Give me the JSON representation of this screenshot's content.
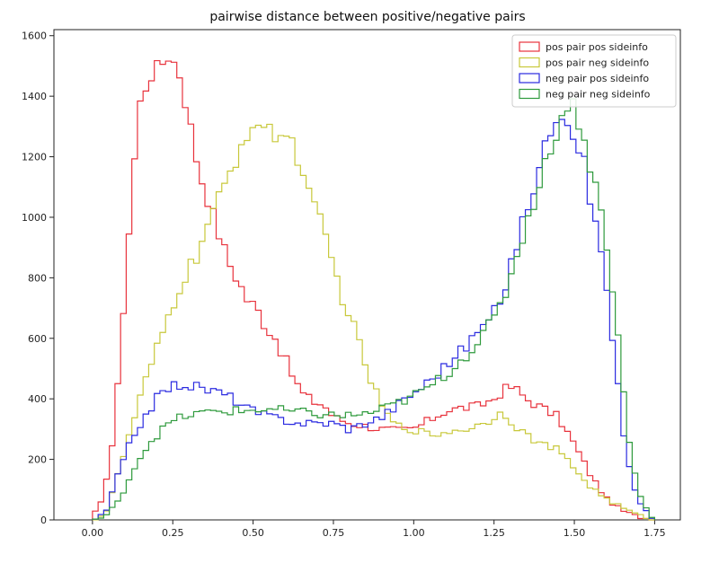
{
  "chart_data": {
    "type": "histogram",
    "title": "pairwise distance between positive/negative pairs",
    "xlabel": "",
    "ylabel": "",
    "xlim": [
      -0.12,
      1.83
    ],
    "ylim": [
      0,
      1620
    ],
    "grid": false,
    "legend_position": "top-right",
    "bin_width": 0.0175,
    "x_start": 0.0,
    "x_ticks": [
      0.0,
      0.25,
      0.5,
      0.75,
      1.0,
      1.25,
      1.5,
      1.75
    ],
    "x_tick_labels": [
      "0.00",
      "0.25",
      "0.50",
      "0.75",
      "1.00",
      "1.25",
      "1.50",
      "1.75"
    ],
    "y_ticks": [
      0,
      200,
      400,
      600,
      800,
      1000,
      1200,
      1400,
      1600
    ],
    "y_tick_labels": [
      "0",
      "200",
      "400",
      "600",
      "800",
      "1000",
      "1200",
      "1400",
      "1600"
    ],
    "series": [
      {
        "name": "pos pair pos sideinfo",
        "color": "#e8323c",
        "anchors": [
          [
            0.0,
            10
          ],
          [
            0.03,
            60
          ],
          [
            0.07,
            300
          ],
          [
            0.09,
            610
          ],
          [
            0.11,
            900
          ],
          [
            0.13,
            1180
          ],
          [
            0.15,
            1390
          ],
          [
            0.18,
            1470
          ],
          [
            0.21,
            1500
          ],
          [
            0.24,
            1540
          ],
          [
            0.27,
            1480
          ],
          [
            0.3,
            1330
          ],
          [
            0.33,
            1160
          ],
          [
            0.36,
            1060
          ],
          [
            0.39,
            960
          ],
          [
            0.42,
            860
          ],
          [
            0.45,
            800
          ],
          [
            0.48,
            730
          ],
          [
            0.51,
            700
          ],
          [
            0.54,
            640
          ],
          [
            0.57,
            600
          ],
          [
            0.6,
            530
          ],
          [
            0.63,
            460
          ],
          [
            0.66,
            410
          ],
          [
            0.69,
            390
          ],
          [
            0.72,
            380
          ],
          [
            0.75,
            340
          ],
          [
            0.8,
            320
          ],
          [
            0.85,
            310
          ],
          [
            0.9,
            300
          ],
          [
            0.95,
            295
          ],
          [
            1.0,
            300
          ],
          [
            1.05,
            330
          ],
          [
            1.1,
            360
          ],
          [
            1.15,
            370
          ],
          [
            1.2,
            375
          ],
          [
            1.25,
            400
          ],
          [
            1.28,
            430
          ],
          [
            1.31,
            440
          ],
          [
            1.35,
            400
          ],
          [
            1.4,
            370
          ],
          [
            1.45,
            340
          ],
          [
            1.5,
            250
          ],
          [
            1.55,
            150
          ],
          [
            1.6,
            70
          ],
          [
            1.65,
            30
          ],
          [
            1.7,
            10
          ],
          [
            1.75,
            0
          ]
        ]
      },
      {
        "name": "pos pair neg sideinfo",
        "color": "#c8c83a",
        "anchors": [
          [
            0.0,
            0
          ],
          [
            0.04,
            20
          ],
          [
            0.08,
            150
          ],
          [
            0.12,
            300
          ],
          [
            0.16,
            440
          ],
          [
            0.2,
            560
          ],
          [
            0.24,
            680
          ],
          [
            0.28,
            790
          ],
          [
            0.32,
            860
          ],
          [
            0.35,
            950
          ],
          [
            0.38,
            1020
          ],
          [
            0.41,
            1100
          ],
          [
            0.44,
            1170
          ],
          [
            0.47,
            1260
          ],
          [
            0.5,
            1310
          ],
          [
            0.53,
            1300
          ],
          [
            0.56,
            1270
          ],
          [
            0.59,
            1280
          ],
          [
            0.62,
            1250
          ],
          [
            0.65,
            1170
          ],
          [
            0.68,
            1050
          ],
          [
            0.71,
            980
          ],
          [
            0.74,
            880
          ],
          [
            0.77,
            760
          ],
          [
            0.8,
            680
          ],
          [
            0.83,
            580
          ],
          [
            0.86,
            480
          ],
          [
            0.89,
            400
          ],
          [
            0.92,
            340
          ],
          [
            0.95,
            310
          ],
          [
            1.0,
            300
          ],
          [
            1.05,
            280
          ],
          [
            1.1,
            290
          ],
          [
            1.15,
            300
          ],
          [
            1.2,
            310
          ],
          [
            1.25,
            340
          ],
          [
            1.28,
            360
          ],
          [
            1.3,
            330
          ],
          [
            1.35,
            280
          ],
          [
            1.4,
            250
          ],
          [
            1.45,
            230
          ],
          [
            1.5,
            170
          ],
          [
            1.55,
            110
          ],
          [
            1.6,
            70
          ],
          [
            1.65,
            40
          ],
          [
            1.7,
            15
          ],
          [
            1.75,
            0
          ]
        ]
      },
      {
        "name": "neg pair pos sideinfo",
        "color": "#2a2ae0",
        "anchors": [
          [
            0.0,
            0
          ],
          [
            0.04,
            20
          ],
          [
            0.08,
            150
          ],
          [
            0.12,
            260
          ],
          [
            0.16,
            340
          ],
          [
            0.2,
            400
          ],
          [
            0.24,
            440
          ],
          [
            0.28,
            450
          ],
          [
            0.32,
            440
          ],
          [
            0.36,
            430
          ],
          [
            0.4,
            420
          ],
          [
            0.44,
            400
          ],
          [
            0.48,
            370
          ],
          [
            0.52,
            350
          ],
          [
            0.56,
            340
          ],
          [
            0.6,
            330
          ],
          [
            0.65,
            320
          ],
          [
            0.7,
            320
          ],
          [
            0.75,
            320
          ],
          [
            0.8,
            300
          ],
          [
            0.85,
            320
          ],
          [
            0.9,
            340
          ],
          [
            0.95,
            380
          ],
          [
            1.0,
            420
          ],
          [
            1.05,
            460
          ],
          [
            1.1,
            510
          ],
          [
            1.15,
            560
          ],
          [
            1.2,
            620
          ],
          [
            1.25,
            680
          ],
          [
            1.28,
            760
          ],
          [
            1.31,
            870
          ],
          [
            1.34,
            980
          ],
          [
            1.37,
            1090
          ],
          [
            1.4,
            1200
          ],
          [
            1.43,
            1300
          ],
          [
            1.45,
            1360
          ],
          [
            1.48,
            1330
          ],
          [
            1.5,
            1270
          ],
          [
            1.53,
            1180
          ],
          [
            1.56,
            1000
          ],
          [
            1.59,
            860
          ],
          [
            1.62,
            600
          ],
          [
            1.65,
            300
          ],
          [
            1.68,
            120
          ],
          [
            1.71,
            40
          ],
          [
            1.74,
            10
          ],
          [
            1.75,
            0
          ]
        ]
      },
      {
        "name": "neg pair neg sideinfo",
        "color": "#2e9a3c",
        "anchors": [
          [
            0.0,
            0
          ],
          [
            0.04,
            10
          ],
          [
            0.08,
            60
          ],
          [
            0.12,
            150
          ],
          [
            0.16,
            230
          ],
          [
            0.2,
            280
          ],
          [
            0.24,
            320
          ],
          [
            0.28,
            340
          ],
          [
            0.32,
            350
          ],
          [
            0.36,
            355
          ],
          [
            0.4,
            360
          ],
          [
            0.44,
            360
          ],
          [
            0.48,
            360
          ],
          [
            0.52,
            365
          ],
          [
            0.56,
            365
          ],
          [
            0.6,
            360
          ],
          [
            0.65,
            355
          ],
          [
            0.7,
            350
          ],
          [
            0.75,
            345
          ],
          [
            0.8,
            345
          ],
          [
            0.85,
            350
          ],
          [
            0.9,
            365
          ],
          [
            0.95,
            385
          ],
          [
            1.0,
            410
          ],
          [
            1.05,
            440
          ],
          [
            1.1,
            480
          ],
          [
            1.15,
            530
          ],
          [
            1.2,
            590
          ],
          [
            1.25,
            660
          ],
          [
            1.28,
            730
          ],
          [
            1.31,
            840
          ],
          [
            1.34,
            940
          ],
          [
            1.37,
            1040
          ],
          [
            1.4,
            1140
          ],
          [
            1.43,
            1240
          ],
          [
            1.46,
            1330
          ],
          [
            1.49,
            1390
          ],
          [
            1.52,
            1300
          ],
          [
            1.55,
            1170
          ],
          [
            1.58,
            1040
          ],
          [
            1.61,
            860
          ],
          [
            1.64,
            560
          ],
          [
            1.67,
            260
          ],
          [
            1.7,
            90
          ],
          [
            1.73,
            25
          ],
          [
            1.75,
            0
          ]
        ]
      }
    ]
  }
}
